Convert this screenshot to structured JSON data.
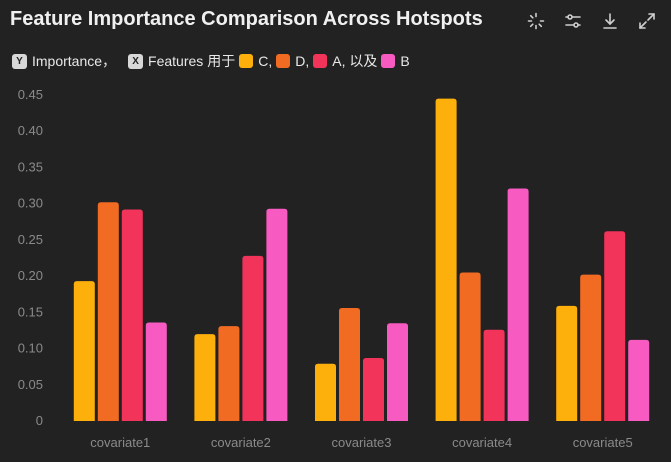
{
  "title": "Feature Importance Comparison Across Hotspots",
  "toolbar": {
    "icons": [
      "select-icon",
      "adjust-icon",
      "download-icon",
      "fullscreen-icon"
    ]
  },
  "legend": {
    "y_chip": "Y",
    "y_label": "Importance",
    "y_sep": "，",
    "x_chip": "X",
    "x_label": "Features",
    "x_connector": "用于",
    "items": [
      {
        "label": "C,",
        "color": "#FDB00B"
      },
      {
        "label": "D,",
        "color": "#F26B22"
      },
      {
        "label": "A, 以及",
        "color": "#F2335A"
      },
      {
        "label": "B",
        "color": "#F75BC1"
      }
    ]
  },
  "chart_data": {
    "type": "bar",
    "title": "Feature Importance Comparison Across Hotspots",
    "categories": [
      "covariate1",
      "covariate2",
      "covariate3",
      "covariate4",
      "covariate5"
    ],
    "series": [
      {
        "name": "C",
        "color": "#FDB00B",
        "values": [
          0.193,
          0.12,
          0.079,
          0.445,
          0.159
        ]
      },
      {
        "name": "D",
        "color": "#F26B22",
        "values": [
          0.302,
          0.131,
          0.156,
          0.205,
          0.202
        ]
      },
      {
        "name": "A",
        "color": "#F2335A",
        "values": [
          0.292,
          0.228,
          0.087,
          0.126,
          0.262
        ]
      },
      {
        "name": "B",
        "color": "#F75BC1",
        "values": [
          0.136,
          0.293,
          0.135,
          0.321,
          0.112
        ]
      }
    ],
    "yticks": [
      "0",
      "0.05",
      "0.10",
      "0.15",
      "0.20",
      "0.25",
      "0.30",
      "0.35",
      "0.40",
      "0.45"
    ],
    "ylim": [
      0,
      0.45
    ],
    "xlabel": "",
    "ylabel": "Importance",
    "grid": false,
    "legend_position": "top-left"
  }
}
